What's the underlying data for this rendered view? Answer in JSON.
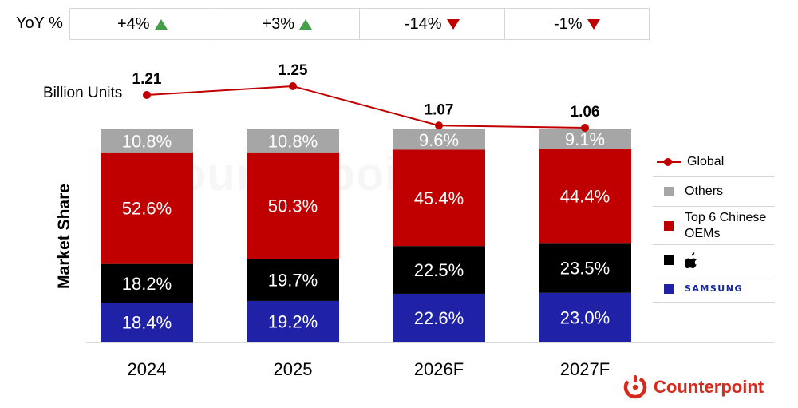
{
  "yoy": {
    "label": "YoY %",
    "cells": [
      {
        "value": "+4%",
        "direction": "up"
      },
      {
        "value": "+3%",
        "direction": "up"
      },
      {
        "value": "-14%",
        "direction": "down"
      },
      {
        "value": "-1%",
        "direction": "down"
      }
    ]
  },
  "units_label": "Billion Units",
  "y_axis_label": "Market Share",
  "colors": {
    "others": "#a6a6a6",
    "chinese": "#c00000",
    "apple": "#000000",
    "samsung": "#1f22a6",
    "global": "#c00000",
    "up": "#43a047",
    "down": "#c00000",
    "brand": "#d42b1e"
  },
  "chart_data": {
    "type": "bar",
    "stacked": true,
    "categories": [
      "2024",
      "2025",
      "2026F",
      "2027F"
    ],
    "series": [
      {
        "name": "Samsung",
        "key": "samsung",
        "values": [
          18.4,
          19.2,
          22.6,
          23.0
        ]
      },
      {
        "name": "Apple",
        "key": "apple",
        "values": [
          18.2,
          19.7,
          22.5,
          23.5
        ]
      },
      {
        "name": "Top 6 Chinese OEMs",
        "key": "chinese",
        "values": [
          52.6,
          50.3,
          45.4,
          44.4
        ]
      },
      {
        "name": "Others",
        "key": "others",
        "values": [
          10.8,
          10.8,
          9.6,
          9.1
        ]
      }
    ],
    "value_labels": [
      [
        "18.4%",
        "19.2%",
        "22.6%",
        "23.0%"
      ],
      [
        "18.2%",
        "19.7%",
        "22.5%",
        "23.5%"
      ],
      [
        "52.6%",
        "50.3%",
        "45.4%",
        "44.4%"
      ],
      [
        "10.8%",
        "10.8%",
        "9.6%",
        "9.1%"
      ]
    ],
    "line": {
      "name": "Global",
      "values": [
        1.21,
        1.25,
        1.07,
        1.06
      ],
      "labels": [
        "1.21",
        "1.25",
        "1.07",
        "1.06"
      ]
    },
    "ylabel": "Market Share",
    "ylim": [
      0,
      100
    ],
    "legend": [
      {
        "key": "global",
        "label": "Global",
        "kind": "line"
      },
      {
        "key": "others",
        "label": "Others",
        "kind": "swatch"
      },
      {
        "key": "chinese",
        "label": "Top 6 Chinese OEMs",
        "kind": "swatch"
      },
      {
        "key": "apple",
        "label": "",
        "kind": "apple-logo"
      },
      {
        "key": "samsung",
        "label": "SAMSUNG",
        "kind": "samsung-logo"
      }
    ],
    "legend_position": "right"
  },
  "brand": {
    "name": "Counterpoint",
    "watermark": "Counterpoint"
  }
}
